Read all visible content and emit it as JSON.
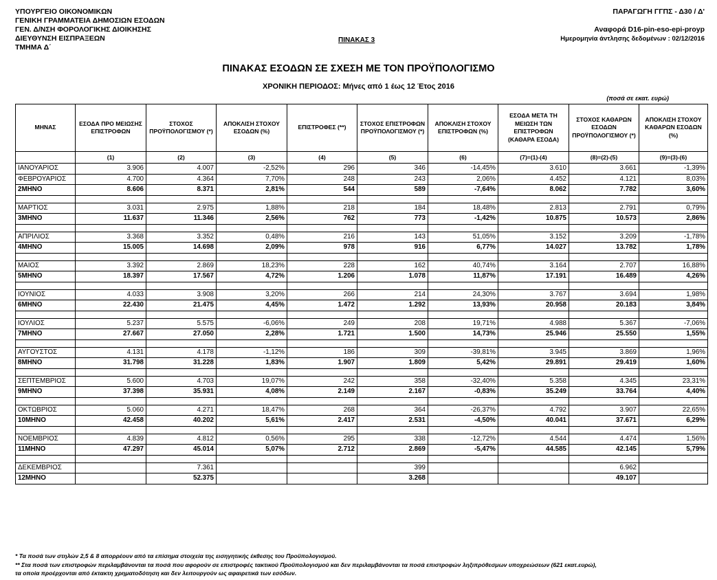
{
  "header": {
    "left": [
      "ΥΠΟΥΡΓΕΙΟ  ΟΙΚΟΝΟΜΙΚΩΝ",
      "ΓΕΝΙΚΗ ΓΡΑΜΜΑΤΕΙΑ ΔΗΜΟΣΙΩΝ ΕΣΟΔΩΝ",
      "ΓΕΝ. Δ/ΝΣΗ ΦΟΡΟΛΟΓΙΚΗΣ ΔΙΟΙΚΗΣΗΣ",
      "ΔΙΕΥΘΥΝΣΗ ΕΙΣΠΡΑΞΕΩΝ",
      "ΤΜΗΜΑ Δ΄"
    ],
    "right_production": "ΠΑΡΑΓΩΓΗ ΓΓΠΣ - Δ30 / Δ'",
    "right_report": "Αναφορά D16-pin-eso-epi-proyp",
    "right_date": "Ημερομηνία άντλησης δεδομένων : 02/12/2016",
    "table_number": "ΠΙΝΑΚΑΣ 3"
  },
  "title": "ΠΙΝΑΚΑΣ ΕΣΟΔΩΝ ΣΕ ΣΧΕΣΗ ΜΕ ΤΟΝ ΠΡΟΫΠΟΛΟΓΙΣΜΟ",
  "subtitle": "ΧΡΟΝΙΚΗ ΠΕΡΙΟΔΟΣ: Μήνες από 1 έως 12 Έτος 2016",
  "units": "(ποσά σε εκατ. ευρώ)",
  "columns": {
    "month": "ΜΗΝΑΣ",
    "c1": "ΕΣΟΔΑ ΠΡΟ ΜΕΙΩΣΗΣ ΕΠΙΣΤΡΟΦΩΝ",
    "c2": "ΣΤΟΧΟΣ ΠΡΟΫΠΟΛΟΓΙΣΜΟΥ (*)",
    "c3": "ΑΠΟΚΛΙΣΗ ΣΤΟΧΟΥ ΕΣΟΔΩΝ (%)",
    "c4": "ΕΠΙΣΤΡΟΦΕΣ (**)",
    "c5": "ΣΤΟΧΟΣ ΕΠΙΣΤΡΟΦΩΝ ΠΡΟΫΠΟΛΟΓΙΣΜΟΥ (*)",
    "c6": "ΑΠΟΚΛΙΣΗ ΣΤΟΧΟΥ ΕΠΙΣΤΡΟΦΩΝ (%)",
    "c7": "ΕΣΟΔΑ ΜΕΤΑ ΤΗ ΜΕΙΩΣΗ ΤΩΝ ΕΠΙΣΤΡΟΦΩΝ (ΚΑΘΑΡΑ ΕΣΟΔΑ)",
    "c8": "ΣΤΟΧΟΣ ΚΑΘΑΡΩΝ ΕΣΟΔΩΝ ΠΡΟΫΠΟΛΟΓΙΣΜΟΥ (*)",
    "c9": "ΑΠΟΚΛΙΣΗ ΣΤΟΧΟΥ ΚΑΘΑΡΩΝ ΕΣΟΔΩΝ (%)"
  },
  "column_numbers": [
    "(1)",
    "(2)",
    "(3)",
    "(4)",
    "(5)",
    "(6)",
    "(7)=(1)-(4)",
    "(8)=(2)-(5)",
    "(9)=(3)-(6)"
  ],
  "rows": [
    {
      "kind": "month",
      "cells": [
        "ΙΑΝΟΥΑΡΙΟΣ",
        "3.906",
        "4.007",
        "-2,52%",
        "296",
        "346",
        "-14,45%",
        "3.610",
        "3.661",
        "-1,39%"
      ]
    },
    {
      "kind": "month",
      "cells": [
        "ΦΕΒΡΟΥΑΡΙΟΣ",
        "4.700",
        "4.364",
        "7,70%",
        "248",
        "243",
        "2,06%",
        "4.452",
        "4.121",
        "8,03%"
      ]
    },
    {
      "kind": "cum",
      "cells": [
        "2ΜΗΝΟ",
        "8.606",
        "8.371",
        "2,81%",
        "544",
        "589",
        "-7,64%",
        "8.062",
        "7.782",
        "3,60%"
      ]
    },
    {
      "kind": "month",
      "cells": [
        "ΜΑΡΤΙΟΣ",
        "3.031",
        "2.975",
        "1,88%",
        "218",
        "184",
        "18,48%",
        "2.813",
        "2.791",
        "0,79%"
      ]
    },
    {
      "kind": "cum",
      "cells": [
        "3ΜΗΝΟ",
        "11.637",
        "11.346",
        "2,56%",
        "762",
        "773",
        "-1,42%",
        "10.875",
        "10.573",
        "2,86%"
      ]
    },
    {
      "kind": "month",
      "cells": [
        "ΑΠΡΙΛΙΟΣ",
        "3.368",
        "3.352",
        "0,48%",
        "216",
        "143",
        "51,05%",
        "3.152",
        "3.209",
        "-1,78%"
      ]
    },
    {
      "kind": "cum",
      "cells": [
        "4ΜΗΝΟ",
        "15.005",
        "14.698",
        "2,09%",
        "978",
        "916",
        "6,77%",
        "14.027",
        "13.782",
        "1,78%"
      ]
    },
    {
      "kind": "month",
      "cells": [
        "ΜΑΙΟΣ",
        "3.392",
        "2.869",
        "18,23%",
        "228",
        "162",
        "40,74%",
        "3.164",
        "2.707",
        "16,88%"
      ]
    },
    {
      "kind": "cum",
      "cells": [
        "5ΜΗΝΟ",
        "18.397",
        "17.567",
        "4,72%",
        "1.206",
        "1.078",
        "11,87%",
        "17.191",
        "16.489",
        "4,26%"
      ]
    },
    {
      "kind": "month",
      "cells": [
        "ΙΟΥΝΙΟΣ",
        "4.033",
        "3.908",
        "3,20%",
        "266",
        "214",
        "24,30%",
        "3.767",
        "3.694",
        "1,98%"
      ]
    },
    {
      "kind": "cum",
      "cells": [
        "6ΜΗΝΟ",
        "22.430",
        "21.475",
        "4,45%",
        "1.472",
        "1.292",
        "13,93%",
        "20.958",
        "20.183",
        "3,84%"
      ]
    },
    {
      "kind": "month",
      "cells": [
        "ΙΟΥΛΙΟΣ",
        "5.237",
        "5.575",
        "-6,06%",
        "249",
        "208",
        "19,71%",
        "4.988",
        "5.367",
        "-7,06%"
      ]
    },
    {
      "kind": "cum",
      "cells": [
        "7ΜΗΝΟ",
        "27.667",
        "27.050",
        "2,28%",
        "1.721",
        "1.500",
        "14,73%",
        "25.946",
        "25.550",
        "1,55%"
      ]
    },
    {
      "kind": "month",
      "cells": [
        "ΑΥΓΟΥΣΤΟΣ",
        "4.131",
        "4.178",
        "-1,12%",
        "186",
        "309",
        "-39,81%",
        "3.945",
        "3.869",
        "1,96%"
      ]
    },
    {
      "kind": "cum",
      "cells": [
        "8ΜΗΝΟ",
        "31.798",
        "31.228",
        "1,83%",
        "1.907",
        "1.809",
        "5,42%",
        "29.891",
        "29.419",
        "1,60%"
      ]
    },
    {
      "kind": "month",
      "cells": [
        "ΣΕΠΤΕΜΒΡΙΟΣ",
        "5.600",
        "4.703",
        "19,07%",
        "242",
        "358",
        "-32,40%",
        "5.358",
        "4.345",
        "23,31%"
      ]
    },
    {
      "kind": "cum",
      "cells": [
        "9ΜΗΝΟ",
        "37.398",
        "35.931",
        "4,08%",
        "2.149",
        "2.167",
        "-0,83%",
        "35.249",
        "33.764",
        "4,40%"
      ]
    },
    {
      "kind": "month",
      "cells": [
        "ΟΚΤΩΒΡΙΟΣ",
        "5.060",
        "4.271",
        "18,47%",
        "268",
        "364",
        "-26,37%",
        "4.792",
        "3.907",
        "22,65%"
      ]
    },
    {
      "kind": "cum",
      "cells": [
        "10ΜΗΝΟ",
        "42.458",
        "40.202",
        "5,61%",
        "2.417",
        "2.531",
        "-4,50%",
        "40.041",
        "37.671",
        "6,29%"
      ]
    },
    {
      "kind": "month",
      "cells": [
        "ΝΟΕΜΒΡΙΟΣ",
        "4.839",
        "4.812",
        "0,56%",
        "295",
        "338",
        "-12,72%",
        "4.544",
        "4.474",
        "1,56%"
      ]
    },
    {
      "kind": "cum",
      "cells": [
        "11ΜΗΝΟ",
        "47.297",
        "45.014",
        "5,07%",
        "2.712",
        "2.869",
        "-5,47%",
        "44.585",
        "42.145",
        "5,79%"
      ]
    },
    {
      "kind": "month",
      "cells": [
        "ΔΕΚΕΜΒΡΙΟΣ",
        "",
        "7.361",
        "",
        "",
        "399",
        "",
        "",
        "6.962",
        ""
      ]
    },
    {
      "kind": "cum-last",
      "cells": [
        "12ΜΗΝΟ",
        "",
        "52.375",
        "",
        "",
        "3.268",
        "",
        "",
        "49.107",
        ""
      ]
    }
  ],
  "footnotes": [
    "*  Τα ποσά των στηλών 2,5 & 8 απορρέουν από τα επίσημα στοιχεία της εισηγητικής έκθεσης του Προϋπολογισμού.",
    "** Στα ποσά των επιστροφών περιλαμβάνονται τα ποσά που αφορούν σε επιστροφές τακτικού Προϋπολογισμού και δεν περιλαμβάνονται τα ποσά επιστροφών ληξιπρόθεσμων υποχρεώσεων (621 εκατ.ευρώ),",
    "   τα οποία προέρχονται από έκτακτη χρηματοδότηση και δεν λειτουργούν ως αφαιρετικά των εσόδων."
  ]
}
